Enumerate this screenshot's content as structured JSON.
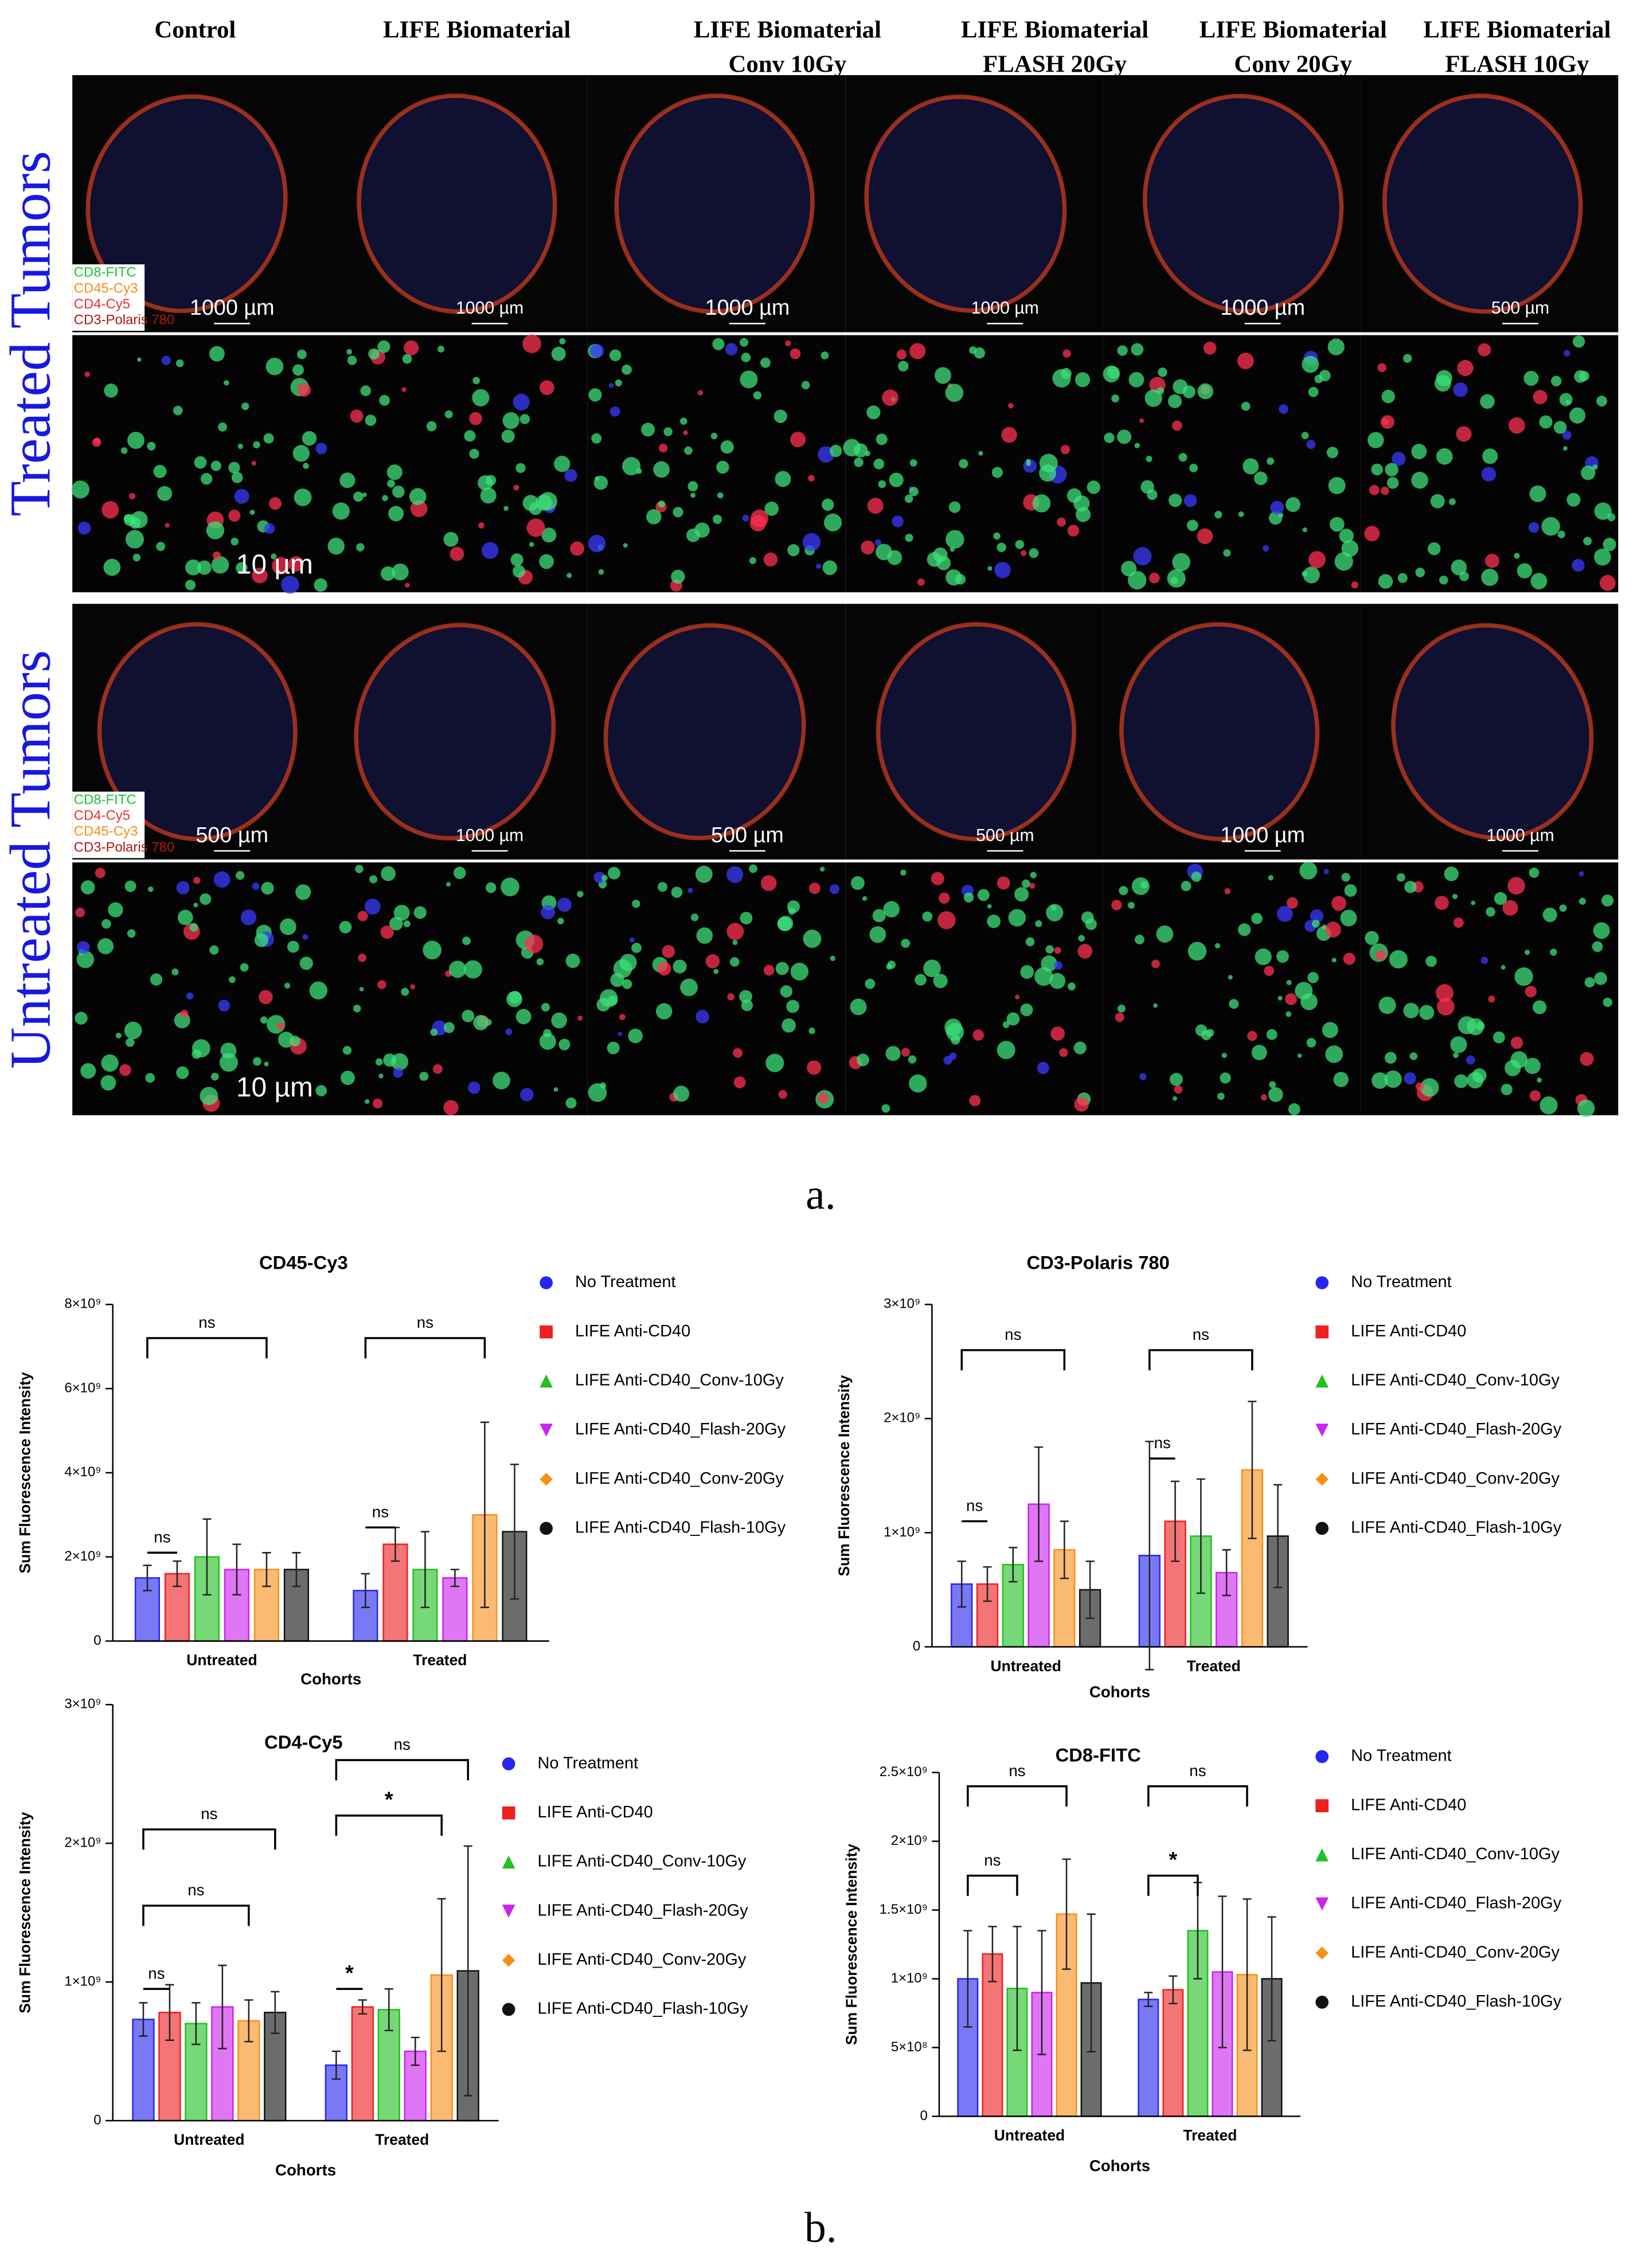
{
  "panel_a": {
    "columns": [
      [
        "Control"
      ],
      [
        "LIFE Biomaterial"
      ],
      [
        "LIFE Biomaterial",
        "Conv 10Gy"
      ],
      [
        "LIFE Biomaterial",
        "FLASH 20Gy"
      ],
      [
        "LIFE Biomaterial",
        "Conv 20Gy"
      ],
      [
        "LIFE Biomaterial",
        "FLASH 10Gy"
      ]
    ],
    "rows": [
      {
        "label": "Treated Tumors",
        "scale_bars": [
          "1000 µm",
          "1000 µm",
          "1000 µm",
          "1000 µm",
          "1000 µm",
          "500 µm"
        ],
        "zoom_scale": "10 µm",
        "stains": [
          {
            "text": "CD8-FITC",
            "color": "#1fbf3a"
          },
          {
            "text": "CD45-Cy3",
            "color": "#f0901a"
          },
          {
            "text": "CD4-Cy5",
            "color": "#e83030"
          },
          {
            "text": "CD3-Polaris 780",
            "color": "#b01818"
          }
        ]
      },
      {
        "label": "Untreated Tumors",
        "scale_bars": [
          "500 µm",
          "1000 µm",
          "500 µm",
          "500 µm",
          "1000 µm",
          "1000 µm"
        ],
        "zoom_scale": "10 µm",
        "stains": [
          {
            "text": "CD8-FITC",
            "color": "#1fbf3a"
          },
          {
            "text": "CD4-Cy5",
            "color": "#e83030"
          },
          {
            "text": "CD45-Cy3",
            "color": "#f0901a"
          },
          {
            "text": "CD3-Polaris 780",
            "color": "#b01818"
          }
        ]
      }
    ],
    "caption": "a."
  },
  "caption_b": "b.",
  "chart_data": [
    {
      "type": "bar",
      "title": "CD45-Cy3",
      "y_label": "Sum Fluorescence Intensity",
      "x_label": "Cohorts",
      "categories": [
        "Untreated",
        "Treated"
      ],
      "ylim": [
        0,
        8000000000
      ],
      "yticks": [
        0,
        {
          "value": 2000000000,
          "label": "2×10⁹"
        },
        {
          "value": 4000000000,
          "label": "4×10⁹"
        },
        {
          "value": 6000000000,
          "label": "6×10⁹"
        },
        {
          "value": 8000000000,
          "label": "8×10⁹"
        }
      ],
      "series": [
        {
          "name": "No Treatment",
          "color": "#2626f0",
          "marker": "circle",
          "values": [
            1500000000,
            1200000000
          ],
          "errors": [
            300000000,
            400000000
          ]
        },
        {
          "name": "LIFE Anti-CD40",
          "color": "#ee2020",
          "marker": "square",
          "values": [
            1600000000,
            2300000000
          ],
          "errors": [
            300000000,
            400000000
          ]
        },
        {
          "name": "LIFE Anti-CD40_Conv-10Gy",
          "color": "#22c022",
          "marker": "triangle",
          "values": [
            2000000000,
            1700000000
          ],
          "errors": [
            900000000,
            900000000
          ]
        },
        {
          "name": "LIFE Anti-CD40_Flash-20Gy",
          "color": "#cc22ee",
          "marker": "triangle-down",
          "values": [
            1700000000,
            1500000000
          ],
          "errors": [
            600000000,
            200000000
          ]
        },
        {
          "name": "LIFE Anti-CD40_Conv-20Gy",
          "color": "#f7901a",
          "marker": "diamond",
          "values": [
            1700000000,
            3000000000
          ],
          "errors": [
            400000000,
            2200000000
          ]
        },
        {
          "name": "LIFE Anti-CD40_Flash-10Gy",
          "color": "#111111",
          "marker": "circle",
          "values": [
            1700000000,
            2600000000
          ],
          "errors": [
            400000000,
            1600000000
          ]
        }
      ],
      "annotations": [
        {
          "text": "ns",
          "category": 0,
          "from": 0,
          "to": 4,
          "y": 7200000000
        },
        {
          "text": "ns",
          "category": 0,
          "from": 0,
          "to": 1,
          "y": 2100000000
        },
        {
          "text": "ns",
          "category": 1,
          "from": 0,
          "to": 4,
          "y": 7200000000
        },
        {
          "text": "ns",
          "category": 1,
          "from": 0,
          "to": 1,
          "y": 2700000000
        }
      ]
    },
    {
      "type": "bar",
      "title": "CD3-Polaris 780",
      "y_label": "Sum Fluorescence Intensity",
      "x_label": "Cohorts",
      "categories": [
        "Untreated",
        "Treated"
      ],
      "ylim": [
        0,
        3000000000
      ],
      "yticks": [
        0,
        {
          "value": 1000000000,
          "label": "1×10⁹"
        },
        {
          "value": 2000000000,
          "label": "2×10⁹"
        },
        {
          "value": 3000000000,
          "label": "3×10⁹"
        }
      ],
      "series": [
        {
          "name": "No Treatment",
          "color": "#2626f0",
          "marker": "circle",
          "values": [
            550000000,
            800000000
          ],
          "errors": [
            200000000,
            1000000000
          ]
        },
        {
          "name": "LIFE Anti-CD40",
          "color": "#ee2020",
          "marker": "square",
          "values": [
            550000000,
            1100000000
          ],
          "errors": [
            150000000,
            350000000
          ]
        },
        {
          "name": "LIFE Anti-CD40_Conv-10Gy",
          "color": "#22c022",
          "marker": "triangle",
          "values": [
            720000000,
            970000000
          ],
          "errors": [
            150000000,
            500000000
          ]
        },
        {
          "name": "LIFE Anti-CD40_Flash-20Gy",
          "color": "#cc22ee",
          "marker": "triangle-down",
          "values": [
            1250000000,
            650000000
          ],
          "errors": [
            500000000,
            200000000
          ]
        },
        {
          "name": "LIFE Anti-CD40_Conv-20Gy",
          "color": "#f7901a",
          "marker": "diamond",
          "values": [
            850000000,
            1550000000
          ],
          "errors": [
            250000000,
            600000000
          ]
        },
        {
          "name": "LIFE Anti-CD40_Flash-10Gy",
          "color": "#111111",
          "marker": "circle",
          "values": [
            500000000,
            970000000
          ],
          "errors": [
            250000000,
            450000000
          ]
        }
      ],
      "annotations": [
        {
          "text": "ns",
          "category": 0,
          "from": 0,
          "to": 4,
          "y": 2600000000
        },
        {
          "text": "ns",
          "category": 0,
          "from": 0,
          "to": 1,
          "y": 1100000000
        },
        {
          "text": "ns",
          "category": 1,
          "from": 0,
          "to": 4,
          "y": 2600000000
        },
        {
          "text": "ns",
          "category": 1,
          "from": 0,
          "to": 1,
          "y": 1650000000
        }
      ]
    },
    {
      "type": "bar",
      "title": "CD4-Cy5",
      "y_label": "Sum Fluorescence Intensity",
      "x_label": "Cohorts",
      "categories": [
        "Untreated",
        "Treated"
      ],
      "ylim": [
        0,
        3000000000
      ],
      "yticks": [
        0,
        {
          "value": 1000000000,
          "label": "1×10⁹"
        },
        {
          "value": 2000000000,
          "label": "2×10⁹"
        },
        {
          "value": 3000000000,
          "label": "3×10⁹"
        }
      ],
      "series": [
        {
          "name": "No Treatment",
          "color": "#2626f0",
          "marker": "circle",
          "values": [
            730000000,
            400000000
          ],
          "errors": [
            120000000,
            100000000
          ]
        },
        {
          "name": "LIFE Anti-CD40",
          "color": "#ee2020",
          "marker": "square",
          "values": [
            780000000,
            820000000
          ],
          "errors": [
            200000000,
            50000000
          ]
        },
        {
          "name": "LIFE Anti-CD40_Conv-10Gy",
          "color": "#22c022",
          "marker": "triangle",
          "values": [
            700000000,
            800000000
          ],
          "errors": [
            150000000,
            150000000
          ]
        },
        {
          "name": "LIFE Anti-CD40_Flash-20Gy",
          "color": "#cc22ee",
          "marker": "triangle-down",
          "values": [
            820000000,
            500000000
          ],
          "errors": [
            300000000,
            100000000
          ]
        },
        {
          "name": "LIFE Anti-CD40_Conv-20Gy",
          "color": "#f7901a",
          "marker": "diamond",
          "values": [
            720000000,
            1050000000
          ],
          "errors": [
            150000000,
            550000000
          ]
        },
        {
          "name": "LIFE Anti-CD40_Flash-10Gy",
          "color": "#111111",
          "marker": "circle",
          "values": [
            780000000,
            1080000000
          ],
          "errors": [
            150000000,
            900000000
          ]
        }
      ],
      "annotations": [
        {
          "text": "ns",
          "category": 0,
          "from": 0,
          "to": 1,
          "y": 950000000
        },
        {
          "text": "ns",
          "category": 0,
          "from": 0,
          "to": 4,
          "y": 1550000000
        },
        {
          "text": "ns",
          "category": 0,
          "from": 0,
          "to": 5,
          "y": 2100000000
        },
        {
          "text": "*",
          "category": 1,
          "from": 0,
          "to": 1,
          "y": 950000000
        },
        {
          "text": "*",
          "category": 1,
          "from": 0,
          "to": 4,
          "y": 2200000000
        },
        {
          "text": "ns",
          "category": 1,
          "from": 0,
          "to": 5,
          "y": 2600000000
        }
      ]
    },
    {
      "type": "bar",
      "title": "CD8-FITC",
      "y_label": "Sum Fluorescence Intensity",
      "x_label": "Cohorts",
      "categories": [
        "Untreated",
        "Treated"
      ],
      "ylim": [
        0,
        2500000000
      ],
      "yticks": [
        0,
        {
          "value": 500000000,
          "label": "5×10⁸"
        },
        {
          "value": 1000000000,
          "label": "1×10⁹"
        },
        {
          "value": 1500000000,
          "label": "1.5×10⁹"
        },
        {
          "value": 2000000000,
          "label": "2×10⁹"
        },
        {
          "value": 2500000000,
          "label": "2.5×10⁹"
        }
      ],
      "series": [
        {
          "name": "No Treatment",
          "color": "#2626f0",
          "marker": "circle",
          "values": [
            1000000000,
            850000000
          ],
          "errors": [
            350000000,
            50000000
          ]
        },
        {
          "name": "LIFE Anti-CD40",
          "color": "#ee2020",
          "marker": "square",
          "values": [
            1180000000,
            920000000
          ],
          "errors": [
            200000000,
            100000000
          ]
        },
        {
          "name": "LIFE Anti-CD40_Conv-10Gy",
          "color": "#22c022",
          "marker": "triangle",
          "values": [
            930000000,
            1350000000
          ],
          "errors": [
            450000000,
            350000000
          ]
        },
        {
          "name": "LIFE Anti-CD40_Flash-20Gy",
          "color": "#cc22ee",
          "marker": "triangle-down",
          "values": [
            900000000,
            1050000000
          ],
          "errors": [
            450000000,
            550000000
          ]
        },
        {
          "name": "LIFE Anti-CD40_Conv-20Gy",
          "color": "#f7901a",
          "marker": "diamond",
          "values": [
            1470000000,
            1030000000
          ],
          "errors": [
            400000000,
            550000000
          ]
        },
        {
          "name": "LIFE Anti-CD40_Flash-10Gy",
          "color": "#111111",
          "marker": "circle",
          "values": [
            970000000,
            1000000000
          ],
          "errors": [
            500000000,
            450000000
          ]
        }
      ],
      "annotations": [
        {
          "text": "ns",
          "category": 0,
          "from": 0,
          "to": 2,
          "y": 1750000000
        },
        {
          "text": "ns",
          "category": 0,
          "from": 0,
          "to": 4,
          "y": 2400000000
        },
        {
          "text": "*",
          "category": 1,
          "from": 0,
          "to": 2,
          "y": 1750000000
        },
        {
          "text": "ns",
          "category": 1,
          "from": 0,
          "to": 4,
          "y": 2400000000
        }
      ]
    }
  ]
}
